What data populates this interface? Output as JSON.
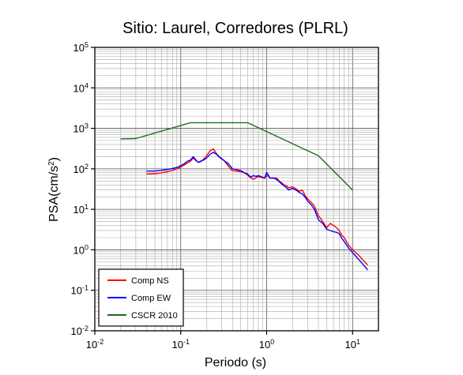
{
  "chart_data": {
    "type": "line",
    "title": "Sitio: Laurel, Corredores (PLRL)",
    "xlabel": "Periodo (s)",
    "ylabel": {
      "base": "PSA(cm/s",
      "sup": "2",
      "end": ")"
    },
    "xscale": "log",
    "yscale": "log",
    "xlim": [
      0.01,
      20
    ],
    "ylim": [
      0.01,
      100000
    ],
    "grid": true,
    "legend_position": "bottom-left",
    "x_ticks": [
      {
        "value": 0.01,
        "base": "10",
        "exp": "-2"
      },
      {
        "value": 0.1,
        "base": "10",
        "exp": "-1"
      },
      {
        "value": 1,
        "base": "10",
        "exp": "0"
      },
      {
        "value": 10,
        "base": "10",
        "exp": "1"
      }
    ],
    "y_ticks": [
      {
        "value": 0.01,
        "base": "10",
        "exp": "-2"
      },
      {
        "value": 0.1,
        "base": "10",
        "exp": "-1"
      },
      {
        "value": 1,
        "base": "10",
        "exp": "0"
      },
      {
        "value": 10,
        "base": "10",
        "exp": "1"
      },
      {
        "value": 100,
        "base": "10",
        "exp": "2"
      },
      {
        "value": 1000,
        "base": "10",
        "exp": "3"
      },
      {
        "value": 10000,
        "base": "10",
        "exp": "4"
      },
      {
        "value": 100000,
        "base": "10",
        "exp": "5"
      }
    ],
    "series": [
      {
        "name": "Comp NS",
        "color": "#ff0000",
        "points": [
          [
            0.04,
            75
          ],
          [
            0.05,
            76
          ],
          [
            0.06,
            80
          ],
          [
            0.07,
            85
          ],
          [
            0.08,
            92
          ],
          [
            0.09,
            100
          ],
          [
            0.1,
            110
          ],
          [
            0.11,
            125
          ],
          [
            0.12,
            140
          ],
          [
            0.13,
            155
          ],
          [
            0.14,
            185
          ],
          [
            0.15,
            160
          ],
          [
            0.16,
            145
          ],
          [
            0.17,
            150
          ],
          [
            0.18,
            165
          ],
          [
            0.2,
            210
          ],
          [
            0.22,
            280
          ],
          [
            0.24,
            310
          ],
          [
            0.26,
            240
          ],
          [
            0.28,
            200
          ],
          [
            0.3,
            180
          ],
          [
            0.32,
            160
          ],
          [
            0.35,
            125
          ],
          [
            0.38,
            100
          ],
          [
            0.4,
            90
          ],
          [
            0.45,
            88
          ],
          [
            0.5,
            85
          ],
          [
            0.55,
            80
          ],
          [
            0.6,
            70
          ],
          [
            0.65,
            60
          ],
          [
            0.7,
            55
          ],
          [
            0.75,
            60
          ],
          [
            0.8,
            65
          ],
          [
            0.85,
            62
          ],
          [
            0.9,
            60
          ],
          [
            0.95,
            58
          ],
          [
            1.0,
            70
          ],
          [
            1.1,
            60
          ],
          [
            1.2,
            58
          ],
          [
            1.3,
            60
          ],
          [
            1.4,
            50
          ],
          [
            1.5,
            45
          ],
          [
            1.6,
            40
          ],
          [
            1.7,
            38
          ],
          [
            1.8,
            34
          ],
          [
            2.0,
            36
          ],
          [
            2.2,
            32
          ],
          [
            2.4,
            28
          ],
          [
            2.6,
            30
          ],
          [
            2.8,
            22
          ],
          [
            3.0,
            18
          ],
          [
            3.3,
            15
          ],
          [
            3.6,
            12
          ],
          [
            4.0,
            7
          ],
          [
            4.5,
            5
          ],
          [
            5.0,
            3.5
          ],
          [
            5.5,
            4.5
          ],
          [
            6.0,
            4
          ],
          [
            6.5,
            3.5
          ],
          [
            7.0,
            3
          ],
          [
            7.5,
            2.3
          ],
          [
            8.0,
            2
          ],
          [
            9.0,
            1.3
          ],
          [
            10.0,
            1.0
          ],
          [
            12.0,
            0.7
          ],
          [
            15.0,
            0.42
          ]
        ]
      },
      {
        "name": "Comp EW",
        "color": "#0000ff",
        "points": [
          [
            0.04,
            88
          ],
          [
            0.05,
            88
          ],
          [
            0.06,
            92
          ],
          [
            0.07,
            97
          ],
          [
            0.08,
            102
          ],
          [
            0.09,
            108
          ],
          [
            0.1,
            120
          ],
          [
            0.11,
            135
          ],
          [
            0.12,
            155
          ],
          [
            0.13,
            165
          ],
          [
            0.14,
            200
          ],
          [
            0.15,
            165
          ],
          [
            0.16,
            145
          ],
          [
            0.17,
            155
          ],
          [
            0.18,
            160
          ],
          [
            0.2,
            185
          ],
          [
            0.22,
            230
          ],
          [
            0.24,
            255
          ],
          [
            0.26,
            230
          ],
          [
            0.28,
            195
          ],
          [
            0.3,
            175
          ],
          [
            0.32,
            160
          ],
          [
            0.35,
            140
          ],
          [
            0.38,
            115
          ],
          [
            0.4,
            100
          ],
          [
            0.45,
            95
          ],
          [
            0.5,
            90
          ],
          [
            0.55,
            80
          ],
          [
            0.6,
            75
          ],
          [
            0.65,
            62
          ],
          [
            0.7,
            68
          ],
          [
            0.75,
            65
          ],
          [
            0.8,
            68
          ],
          [
            0.85,
            65
          ],
          [
            0.9,
            62
          ],
          [
            0.95,
            60
          ],
          [
            1.0,
            82
          ],
          [
            1.1,
            58
          ],
          [
            1.2,
            60
          ],
          [
            1.3,
            55
          ],
          [
            1.4,
            48
          ],
          [
            1.5,
            42
          ],
          [
            1.6,
            38
          ],
          [
            1.7,
            34
          ],
          [
            1.8,
            30
          ],
          [
            2.0,
            33
          ],
          [
            2.2,
            30
          ],
          [
            2.4,
            26
          ],
          [
            2.6,
            24
          ],
          [
            2.8,
            20
          ],
          [
            3.0,
            16
          ],
          [
            3.3,
            13
          ],
          [
            3.6,
            10
          ],
          [
            4.0,
            5.5
          ],
          [
            4.5,
            4.5
          ],
          [
            5.0,
            3.2
          ],
          [
            5.5,
            3
          ],
          [
            6.0,
            2.8
          ],
          [
            6.5,
            2.7
          ],
          [
            7.0,
            2.5
          ],
          [
            7.5,
            1.9
          ],
          [
            8.0,
            1.6
          ],
          [
            9.0,
            1.1
          ],
          [
            10.0,
            0.85
          ],
          [
            12.0,
            0.55
          ],
          [
            15.0,
            0.32
          ]
        ]
      },
      {
        "name": "CSCR 2010",
        "color": "#1a6e1a",
        "points": [
          [
            0.02,
            550
          ],
          [
            0.03,
            560
          ],
          [
            0.13,
            1380
          ],
          [
            0.6,
            1380
          ],
          [
            4.0,
            210
          ],
          [
            10.0,
            30
          ]
        ]
      }
    ]
  }
}
